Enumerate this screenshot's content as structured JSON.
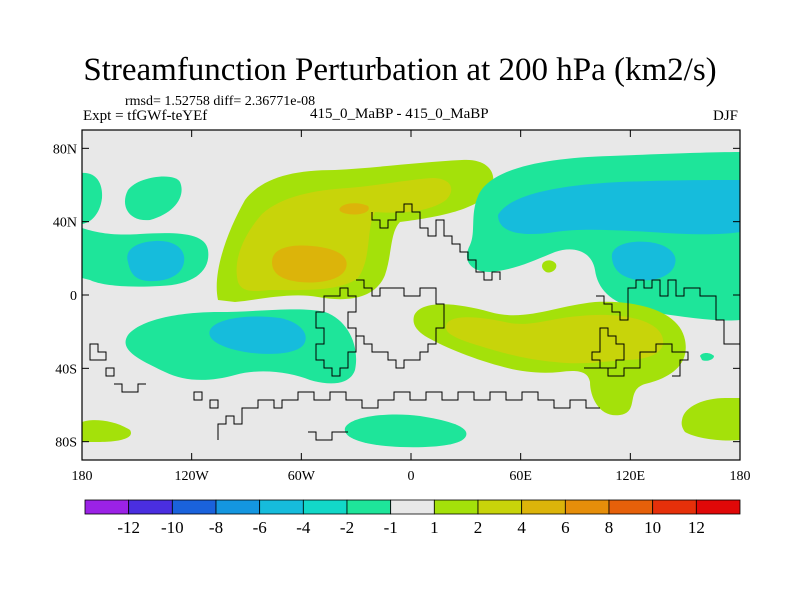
{
  "title": "Streamfunction Perturbation at 200 hPa (km2/s)",
  "stats": "rmsd= 1.52758 diff= 2.36771e-08",
  "experiment": "Expt = tfGWf-teYEf",
  "case_label": "415_0_MaBP - 415_0_MaBP",
  "season": "DJF",
  "colors": {
    "neutral": "#e8e8e8",
    "coast": "#000000"
  },
  "chart_data": {
    "type": "heatmap",
    "projection": "cylindrical equidistant",
    "variable": "Streamfunction Perturbation",
    "level": "200 hPa",
    "units": "km2/s",
    "xlim": [
      -180,
      180
    ],
    "ylim": [
      -90,
      90
    ],
    "x_ticks": [
      {
        "value": -180,
        "label": "180"
      },
      {
        "value": -120,
        "label": "120W"
      },
      {
        "value": -60,
        "label": "60W"
      },
      {
        "value": 0,
        "label": "0"
      },
      {
        "value": 60,
        "label": "60E"
      },
      {
        "value": 120,
        "label": "120E"
      },
      {
        "value": 180,
        "label": "180"
      }
    ],
    "y_ticks": [
      {
        "value": 80,
        "label": "80N"
      },
      {
        "value": 40,
        "label": "40N"
      },
      {
        "value": 0,
        "label": "0"
      },
      {
        "value": -40,
        "label": "40S"
      },
      {
        "value": -80,
        "label": "80S"
      }
    ],
    "colorbar": {
      "labels": [
        "-12",
        "-10",
        "-8",
        "-6",
        "-4",
        "-2",
        "-1",
        "1",
        "2",
        "4",
        "6",
        "8",
        "10",
        "12"
      ],
      "colors": [
        "#9b22e6",
        "#4a2ee0",
        "#1a62dc",
        "#1496e0",
        "#16bcdc",
        "#12d8c8",
        "#1ee59a",
        "#e8e8e8",
        "#a4e10a",
        "#c8d40a",
        "#dcb40a",
        "#e68e0a",
        "#e6600a",
        "#e6300a",
        "#e00808"
      ]
    },
    "contour_regions": [
      {
        "name": "Central Pacific NH negative",
        "level": "-2 to -1",
        "lon": [
          -168,
          -138
        ],
        "lat": [
          38,
          60
        ]
      },
      {
        "name": "North Pacific negative",
        "level": "-2 to -1",
        "lon": [
          -180,
          -108
        ],
        "lat": [
          8,
          40
        ]
      },
      {
        "name": "North Pacific core",
        "level": "-4 to -2",
        "lon": [
          -155,
          -128
        ],
        "lat": [
          10,
          28
        ]
      },
      {
        "name": "North America/Atlantic positive",
        "level": "1 to 2",
        "lon": [
          -112,
          -2
        ],
        "lat": [
          3,
          68
        ]
      },
      {
        "name": "North America/Atlantic maximum",
        "level": "4 to 6",
        "lon": [
          -85,
          -48
        ],
        "lat": [
          8,
          36
        ]
      },
      {
        "name": "Eurasia negative",
        "level": "-2 to -1",
        "lon": [
          12,
          180
        ],
        "lat": [
          0,
          70
        ]
      },
      {
        "name": "Eurasia core",
        "level": "-4 to -2",
        "lon": [
          48,
          180
        ],
        "lat": [
          35,
          58
        ]
      },
      {
        "name": "South Pacific/South America negative",
        "level": "-2 to -1",
        "lon": [
          -162,
          -32
        ],
        "lat": [
          -52,
          -2
        ]
      },
      {
        "name": "South Pacific core",
        "level": "-4 to -2",
        "lon": [
          -115,
          -65
        ],
        "lat": [
          -30,
          -12
        ]
      },
      {
        "name": "Indian Ocean positive",
        "level": "1 to 2",
        "lon": [
          3,
          145
        ],
        "lat": [
          -70,
          -3
        ]
      },
      {
        "name": "Indian Ocean maximum",
        "level": "2 to 4",
        "lon": [
          25,
          130
        ],
        "lat": [
          -35,
          -13
        ]
      },
      {
        "name": "Southern Ocean negative",
        "level": "-2 to -1",
        "lon": [
          -38,
          15
        ],
        "lat": [
          -82,
          -65
        ]
      },
      {
        "name": "South Pacific east positive",
        "level": "1 to 2",
        "lon": [
          150,
          180
        ],
        "lat": [
          -82,
          -58
        ]
      }
    ]
  }
}
